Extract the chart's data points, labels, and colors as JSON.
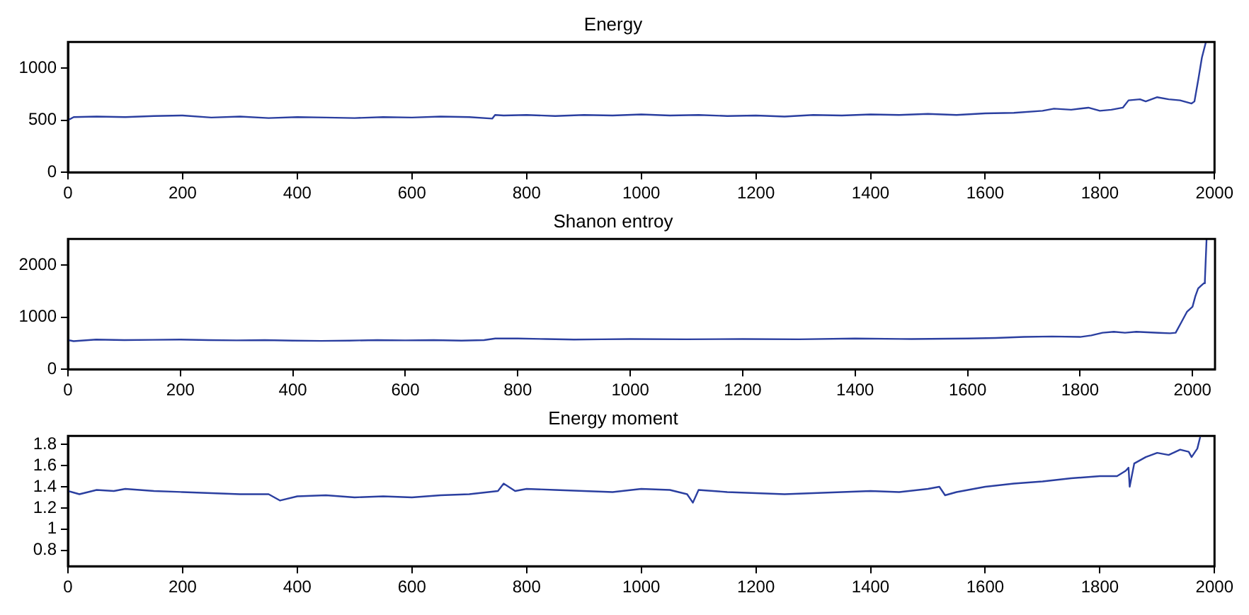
{
  "chart_data": [
    {
      "type": "line",
      "title": "Energy",
      "x": [
        0,
        10,
        50,
        100,
        150,
        200,
        250,
        300,
        350,
        400,
        450,
        500,
        550,
        600,
        650,
        700,
        740,
        745,
        760,
        800,
        850,
        900,
        950,
        1000,
        1050,
        1100,
        1150,
        1200,
        1250,
        1300,
        1350,
        1400,
        1450,
        1500,
        1550,
        1600,
        1650,
        1700,
        1720,
        1750,
        1780,
        1800,
        1820,
        1840,
        1850,
        1870,
        1880,
        1900,
        1920,
        1940,
        1960,
        1965,
        1972,
        1978,
        1985
      ],
      "values": [
        500,
        530,
        535,
        530,
        540,
        545,
        525,
        535,
        520,
        530,
        525,
        520,
        530,
        525,
        535,
        530,
        515,
        550,
        545,
        550,
        540,
        550,
        545,
        555,
        545,
        550,
        540,
        545,
        535,
        550,
        545,
        555,
        550,
        560,
        550,
        565,
        570,
        590,
        610,
        600,
        620,
        590,
        600,
        620,
        690,
        700,
        680,
        720,
        700,
        690,
        660,
        680,
        900,
        1100,
        1250
      ],
      "xlim": [
        0,
        2000
      ],
      "ylim": [
        0,
        1250
      ],
      "xticks": [
        0,
        200,
        400,
        600,
        800,
        1000,
        1200,
        1400,
        1600,
        1800,
        2000
      ],
      "yticks": [
        0,
        500,
        1000
      ],
      "color": "#2b3fa0",
      "grid": false,
      "legend": false,
      "marker": "none",
      "line_style": "solid"
    },
    {
      "type": "line",
      "title": "Shanon entroy",
      "x": [
        0,
        10,
        50,
        100,
        150,
        200,
        250,
        300,
        350,
        400,
        450,
        500,
        550,
        600,
        650,
        700,
        740,
        760,
        800,
        850,
        900,
        950,
        1000,
        1100,
        1200,
        1300,
        1400,
        1500,
        1600,
        1650,
        1700,
        1750,
        1800,
        1820,
        1840,
        1860,
        1880,
        1900,
        1920,
        1940,
        1960,
        1970,
        1980,
        1990,
        2000,
        2005,
        2010,
        2015,
        2020,
        2022,
        2025
      ],
      "values": [
        560,
        540,
        570,
        560,
        565,
        570,
        560,
        555,
        560,
        550,
        545,
        550,
        560,
        555,
        560,
        550,
        560,
        590,
        590,
        580,
        570,
        575,
        580,
        575,
        580,
        575,
        590,
        580,
        590,
        600,
        620,
        630,
        620,
        650,
        700,
        720,
        700,
        720,
        710,
        700,
        690,
        700,
        900,
        1100,
        1200,
        1400,
        1550,
        1600,
        1650,
        1700,
        2500
      ],
      "xlim": [
        0,
        2040
      ],
      "ylim": [
        0,
        2500
      ],
      "xticks": [
        0,
        200,
        400,
        600,
        800,
        1000,
        1200,
        1400,
        1600,
        1800,
        2000
      ],
      "yticks": [
        0,
        1000,
        2000
      ],
      "color": "#2b3fa0",
      "grid": false,
      "legend": false,
      "marker": "none",
      "line_style": "solid"
    },
    {
      "type": "line",
      "title": "Energy moment",
      "x": [
        0,
        20,
        50,
        80,
        100,
        150,
        200,
        250,
        300,
        350,
        370,
        400,
        450,
        500,
        550,
        600,
        650,
        700,
        750,
        760,
        780,
        800,
        850,
        900,
        950,
        1000,
        1050,
        1080,
        1090,
        1100,
        1150,
        1200,
        1250,
        1300,
        1350,
        1400,
        1450,
        1500,
        1520,
        1530,
        1550,
        1600,
        1650,
        1700,
        1750,
        1800,
        1830,
        1845,
        1850,
        1852,
        1860,
        1880,
        1900,
        1920,
        1940,
        1955,
        1960,
        1970,
        1975
      ],
      "values": [
        1.36,
        1.33,
        1.37,
        1.36,
        1.38,
        1.36,
        1.35,
        1.34,
        1.33,
        1.33,
        1.27,
        1.31,
        1.32,
        1.3,
        1.31,
        1.3,
        1.32,
        1.33,
        1.36,
        1.43,
        1.36,
        1.38,
        1.37,
        1.36,
        1.35,
        1.38,
        1.37,
        1.33,
        1.25,
        1.37,
        1.35,
        1.34,
        1.33,
        1.34,
        1.35,
        1.36,
        1.35,
        1.38,
        1.4,
        1.32,
        1.35,
        1.4,
        1.43,
        1.45,
        1.48,
        1.5,
        1.5,
        1.55,
        1.58,
        1.4,
        1.62,
        1.68,
        1.72,
        1.7,
        1.75,
        1.73,
        1.68,
        1.76,
        1.87
      ],
      "xlim": [
        0,
        2000
      ],
      "ylim": [
        0.65,
        1.88
      ],
      "xticks": [
        0,
        200,
        400,
        600,
        800,
        1000,
        1200,
        1400,
        1600,
        1800,
        2000
      ],
      "yticks": [
        0.8,
        1,
        1.2,
        1.4,
        1.6,
        1.8
      ],
      "color": "#2b3fa0",
      "grid": false,
      "legend": false,
      "marker": "none",
      "line_style": "solid"
    }
  ]
}
